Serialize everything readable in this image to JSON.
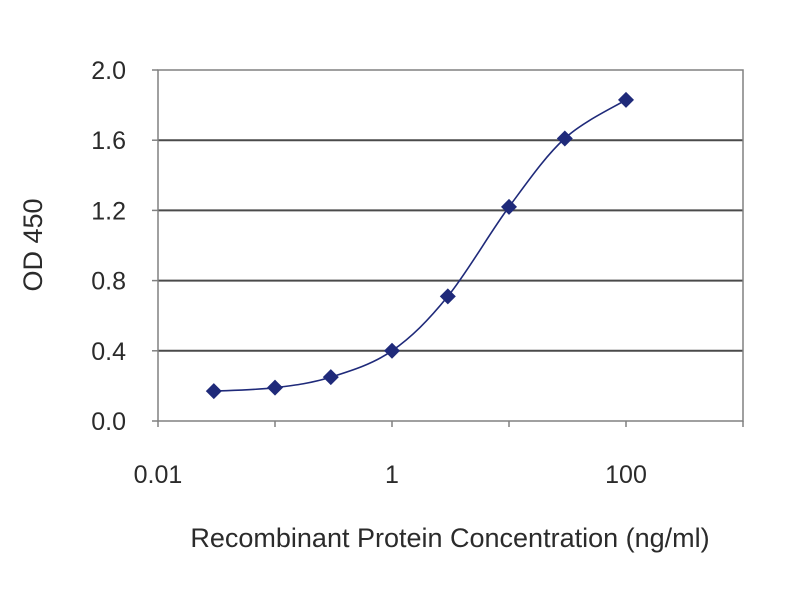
{
  "chart_data": {
    "type": "line",
    "xlabel": "Recombinant Protein Concentration (ng/ml)",
    "ylabel": "OD 450",
    "xscale": "log",
    "xlim": [
      0.01,
      1000
    ],
    "ylim": [
      0.0,
      2.0
    ],
    "x_ticks": [
      0.01,
      1,
      100
    ],
    "x_tick_labels": [
      "0.01",
      "1",
      "100"
    ],
    "y_ticks": [
      0.0,
      0.4,
      0.8,
      1.2,
      1.6,
      2.0
    ],
    "y_tick_labels": [
      "0.0",
      "0.4",
      "0.8",
      "1.2",
      "1.6",
      "2.0"
    ],
    "grid": "horizontal",
    "series": [
      {
        "x": [
          0.03,
          0.1,
          0.3,
          1,
          3,
          10,
          30,
          100
        ],
        "y": [
          0.17,
          0.19,
          0.25,
          0.4,
          0.71,
          1.22,
          1.61,
          1.83
        ],
        "marker": "diamond",
        "color": "#1f2a7a"
      }
    ]
  }
}
